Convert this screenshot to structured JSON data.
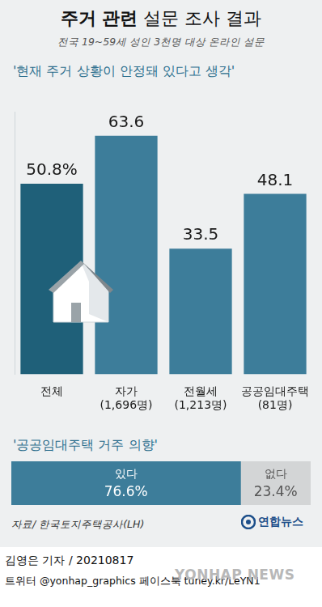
{
  "title": [
    "주거 관련",
    "설문 조사 결과"
  ],
  "subtitle": "전국 19~59세 성인 3천명 대상 온라인 설문",
  "chart_data": [
    {
      "type": "bar",
      "title": "'현재 주거 상황이 안정돼 있다고 생각'",
      "categories": [
        "전체",
        [
          "자가",
          "(1,696명)"
        ],
        [
          "전월세",
          "(1,213명)"
        ],
        [
          "공공임대주택",
          "(81명)"
        ]
      ],
      "values": [
        50.8,
        63.6,
        33.5,
        48.1
      ],
      "value_labels": [
        "50.8%",
        "63.6",
        "33.5",
        "48.1"
      ],
      "colors": [
        "#1f6079",
        "#3d7d9a",
        "#3d7d9a",
        "#3d7d9a"
      ],
      "ylim": [
        0,
        70
      ],
      "grid": false,
      "tick_labels": "x",
      "data_labels": true
    },
    {
      "type": "bar",
      "title": "'공공임대주택 거주 의향'",
      "orientation": "horizontal",
      "stacked": true,
      "categories": [
        null
      ],
      "series": [
        {
          "name": "있다",
          "color": "#3d7d9a",
          "values": [
            76.6
          ],
          "value_labels": [
            "76.6%"
          ]
        },
        {
          "name": "없다",
          "color": "#d3d5d6",
          "values": [
            23.4
          ],
          "value_labels": [
            "23.4%"
          ]
        }
      ],
      "xlim": [
        0,
        100
      ],
      "grid": false,
      "tick_labels": false,
      "data_labels": true
    }
  ],
  "source": "자료/ 한국토지주택공사(LH)",
  "logo": "연합뉴스",
  "byline": "김영은 기자 / 20210817",
  "social": "트위터 @yonhap_graphics  페이스북 tuney.kr/LeYN1",
  "watermark": "YONHAP NEWS"
}
